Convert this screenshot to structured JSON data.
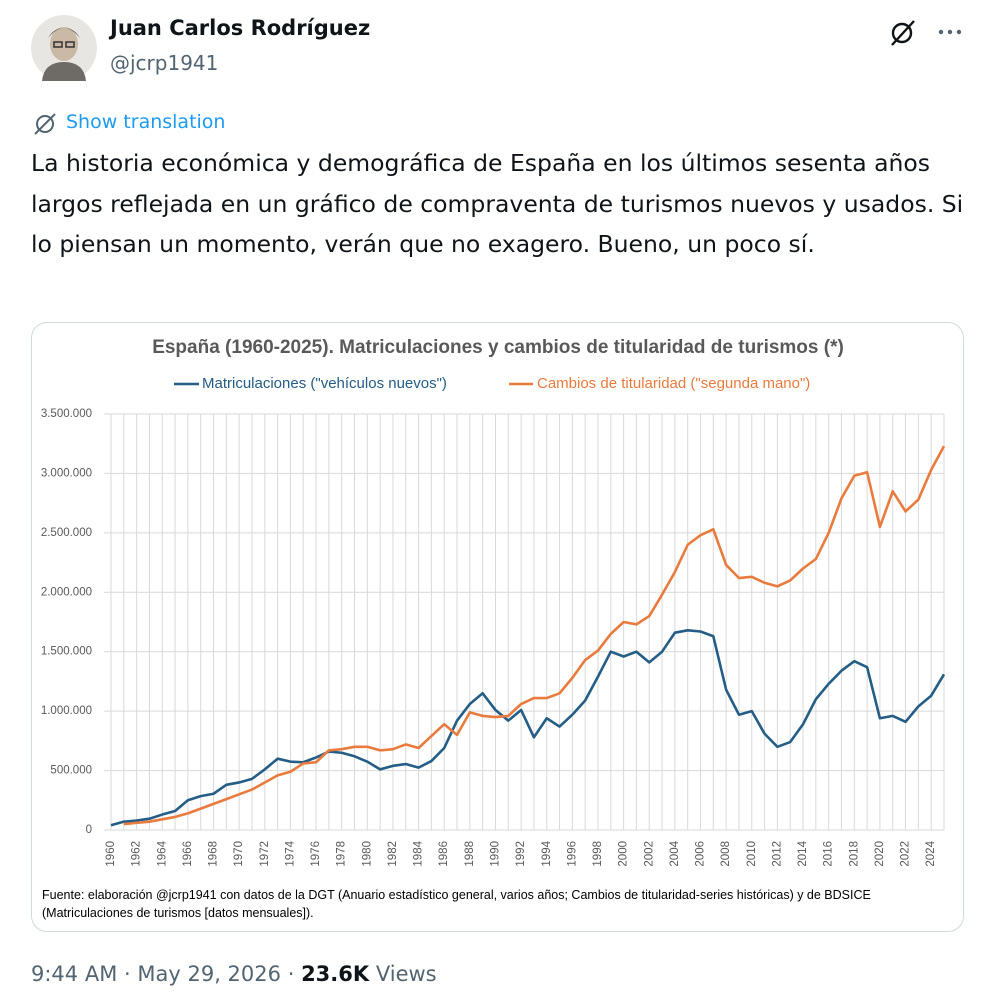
{
  "author": {
    "name": "Juan Carlos Rodríguez",
    "handle": "@jcrp1941"
  },
  "translation_link": "Show translation",
  "text": "La historia económica y demográfica de España en los últimos sesenta años largos reflejada en un gráfico de compraventa de turismos nuevos y usados. Si lo piensan un momento, verán que no exagero. Bueno, un poco sí.",
  "chart_data": {
    "type": "line",
    "title": "España (1960-2025). Matriculaciones y cambios de titularidad de turismos (*)",
    "note": "Fuente: elaboración @jcrp1941 con datos de la DGT (Anuario estadístico general, varios años; Cambios de titularidad-series históricas) y de BDSICE (Matriculaciones de turismos [datos mensuales]).",
    "x": [
      1960,
      1961,
      1962,
      1963,
      1964,
      1965,
      1966,
      1967,
      1968,
      1969,
      1970,
      1971,
      1972,
      1973,
      1974,
      1975,
      1976,
      1977,
      1978,
      1979,
      1980,
      1981,
      1982,
      1983,
      1984,
      1985,
      1986,
      1987,
      1988,
      1989,
      1990,
      1991,
      1992,
      1993,
      1994,
      1995,
      1996,
      1997,
      1998,
      1999,
      2000,
      2001,
      2002,
      2003,
      2004,
      2005,
      2006,
      2007,
      2008,
      2009,
      2010,
      2011,
      2012,
      2013,
      2014,
      2015,
      2016,
      2017,
      2018,
      2019,
      2020,
      2021,
      2022,
      2023,
      2024,
      2025
    ],
    "xlim": [
      1960,
      2025
    ],
    "xticks": [
      1960,
      1962,
      1964,
      1966,
      1968,
      1970,
      1972,
      1974,
      1976,
      1978,
      1980,
      1982,
      1984,
      1986,
      1988,
      1990,
      1992,
      1994,
      1996,
      1998,
      2000,
      2002,
      2004,
      2006,
      2008,
      2010,
      2012,
      2014,
      2016,
      2018,
      2020,
      2022,
      2024
    ],
    "ylim": [
      0,
      3500000
    ],
    "yticks": [
      0,
      {
        "value": 500000,
        "label": "500.000"
      },
      {
        "value": 1000000,
        "label": "1.000.000"
      },
      {
        "value": 1500000,
        "label": "1.500.000"
      },
      {
        "value": 2000000,
        "label": "2.000.000"
      },
      {
        "value": 2500000,
        "label": "2.500.000"
      },
      {
        "value": 3000000,
        "label": "3.000.000"
      },
      {
        "value": 3500000,
        "label": "3.500.000"
      }
    ],
    "grid": true,
    "legend": "top",
    "series": [
      {
        "name": "Matriculaciones (\"vehículos nuevos\")",
        "color": "#245d85",
        "values": [
          40000,
          70000,
          80000,
          95000,
          130000,
          160000,
          250000,
          285000,
          305000,
          380000,
          400000,
          430000,
          510000,
          600000,
          575000,
          570000,
          610000,
          660000,
          650000,
          620000,
          575000,
          510000,
          540000,
          555000,
          525000,
          580000,
          690000,
          920000,
          1060000,
          1150000,
          1010000,
          920000,
          1010000,
          780000,
          940000,
          870000,
          970000,
          1090000,
          1290000,
          1500000,
          1460000,
          1500000,
          1410000,
          1500000,
          1660000,
          1680000,
          1670000,
          1630000,
          1180000,
          970000,
          1000000,
          810000,
          700000,
          740000,
          890000,
          1100000,
          1230000,
          1340000,
          1420000,
          1370000,
          940000,
          960000,
          910000,
          1040000,
          1130000,
          1310000
        ]
      },
      {
        "name": "Cambios de titularidad (\"segunda mano\")",
        "color": "#e87b3d",
        "values": [
          null,
          50000,
          60000,
          70000,
          90000,
          110000,
          140000,
          180000,
          220000,
          260000,
          300000,
          340000,
          400000,
          460000,
          490000,
          560000,
          570000,
          670000,
          680000,
          700000,
          700000,
          670000,
          680000,
          720000,
          690000,
          790000,
          890000,
          800000,
          990000,
          960000,
          950000,
          960000,
          1060000,
          1110000,
          1110000,
          1150000,
          1280000,
          1430000,
          1510000,
          1650000,
          1750000,
          1730000,
          1800000,
          1980000,
          2170000,
          2400000,
          2480000,
          2530000,
          2230000,
          2120000,
          2130000,
          2080000,
          2050000,
          2100000,
          2200000,
          2280000,
          2500000,
          2790000,
          2980000,
          3010000,
          2550000,
          2850000,
          2680000,
          2780000,
          3030000,
          3230000
        ]
      }
    ]
  },
  "footer": {
    "time": "9:44 AM",
    "separator": "·",
    "date": "May 29, 2026",
    "views": "23.6K",
    "views_label": "Views"
  }
}
